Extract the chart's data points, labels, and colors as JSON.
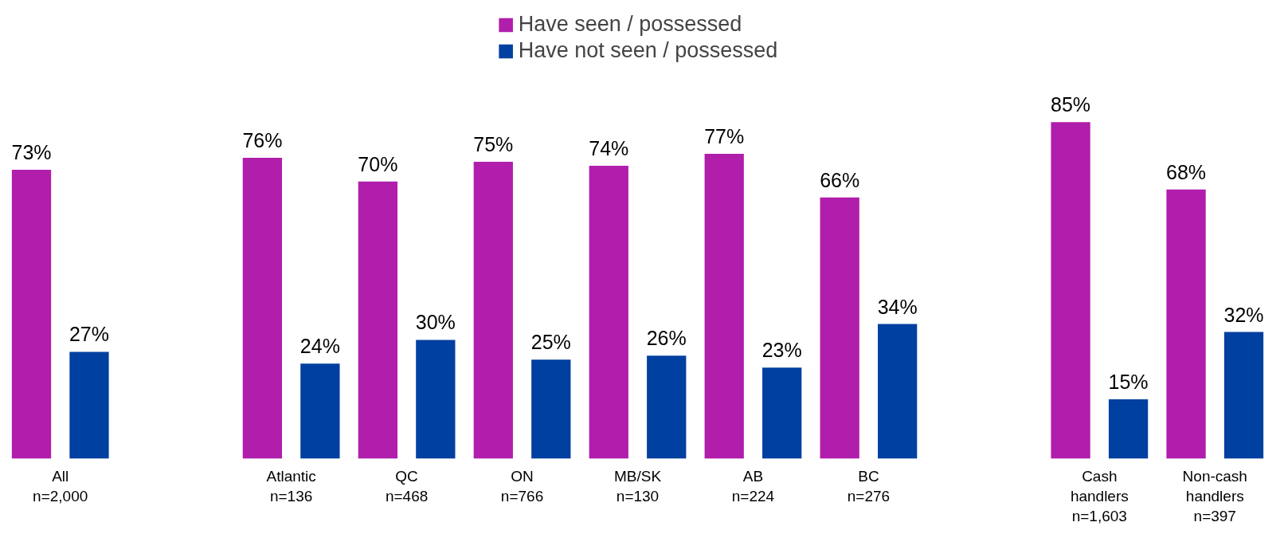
{
  "chart_data": {
    "type": "bar",
    "categories": [
      "All\nn=2,000",
      null,
      "Atlantic\nn=136",
      "QC\nn=468",
      "ON\nn=766",
      "MB/SK\nn=130",
      "AB\nn=224",
      "BC\nn=276",
      null,
      "Cash\nhandlers\nn=1,603",
      "Non-cash\nhandlers\nn=397"
    ],
    "series": [
      {
        "name": "Have seen / possessed",
        "color": "#b01eab",
        "values": [
          73,
          null,
          76,
          70,
          75,
          74,
          77,
          66,
          null,
          85,
          68
        ],
        "value_labels": [
          "73%",
          null,
          "76%",
          "70%",
          "75%",
          "74%",
          "77%",
          "66%",
          null,
          "85%",
          "68%"
        ]
      },
      {
        "name": "Have not seen / possessed",
        "color": "#0040a0",
        "values": [
          27,
          null,
          24,
          30,
          25,
          26,
          23,
          34,
          null,
          15,
          32
        ],
        "value_labels": [
          "27%",
          null,
          "24%",
          "30%",
          "25%",
          "26%",
          "23%",
          "34%",
          null,
          "15%",
          "32%"
        ]
      }
    ],
    "legend": "top",
    "grid": false
  }
}
